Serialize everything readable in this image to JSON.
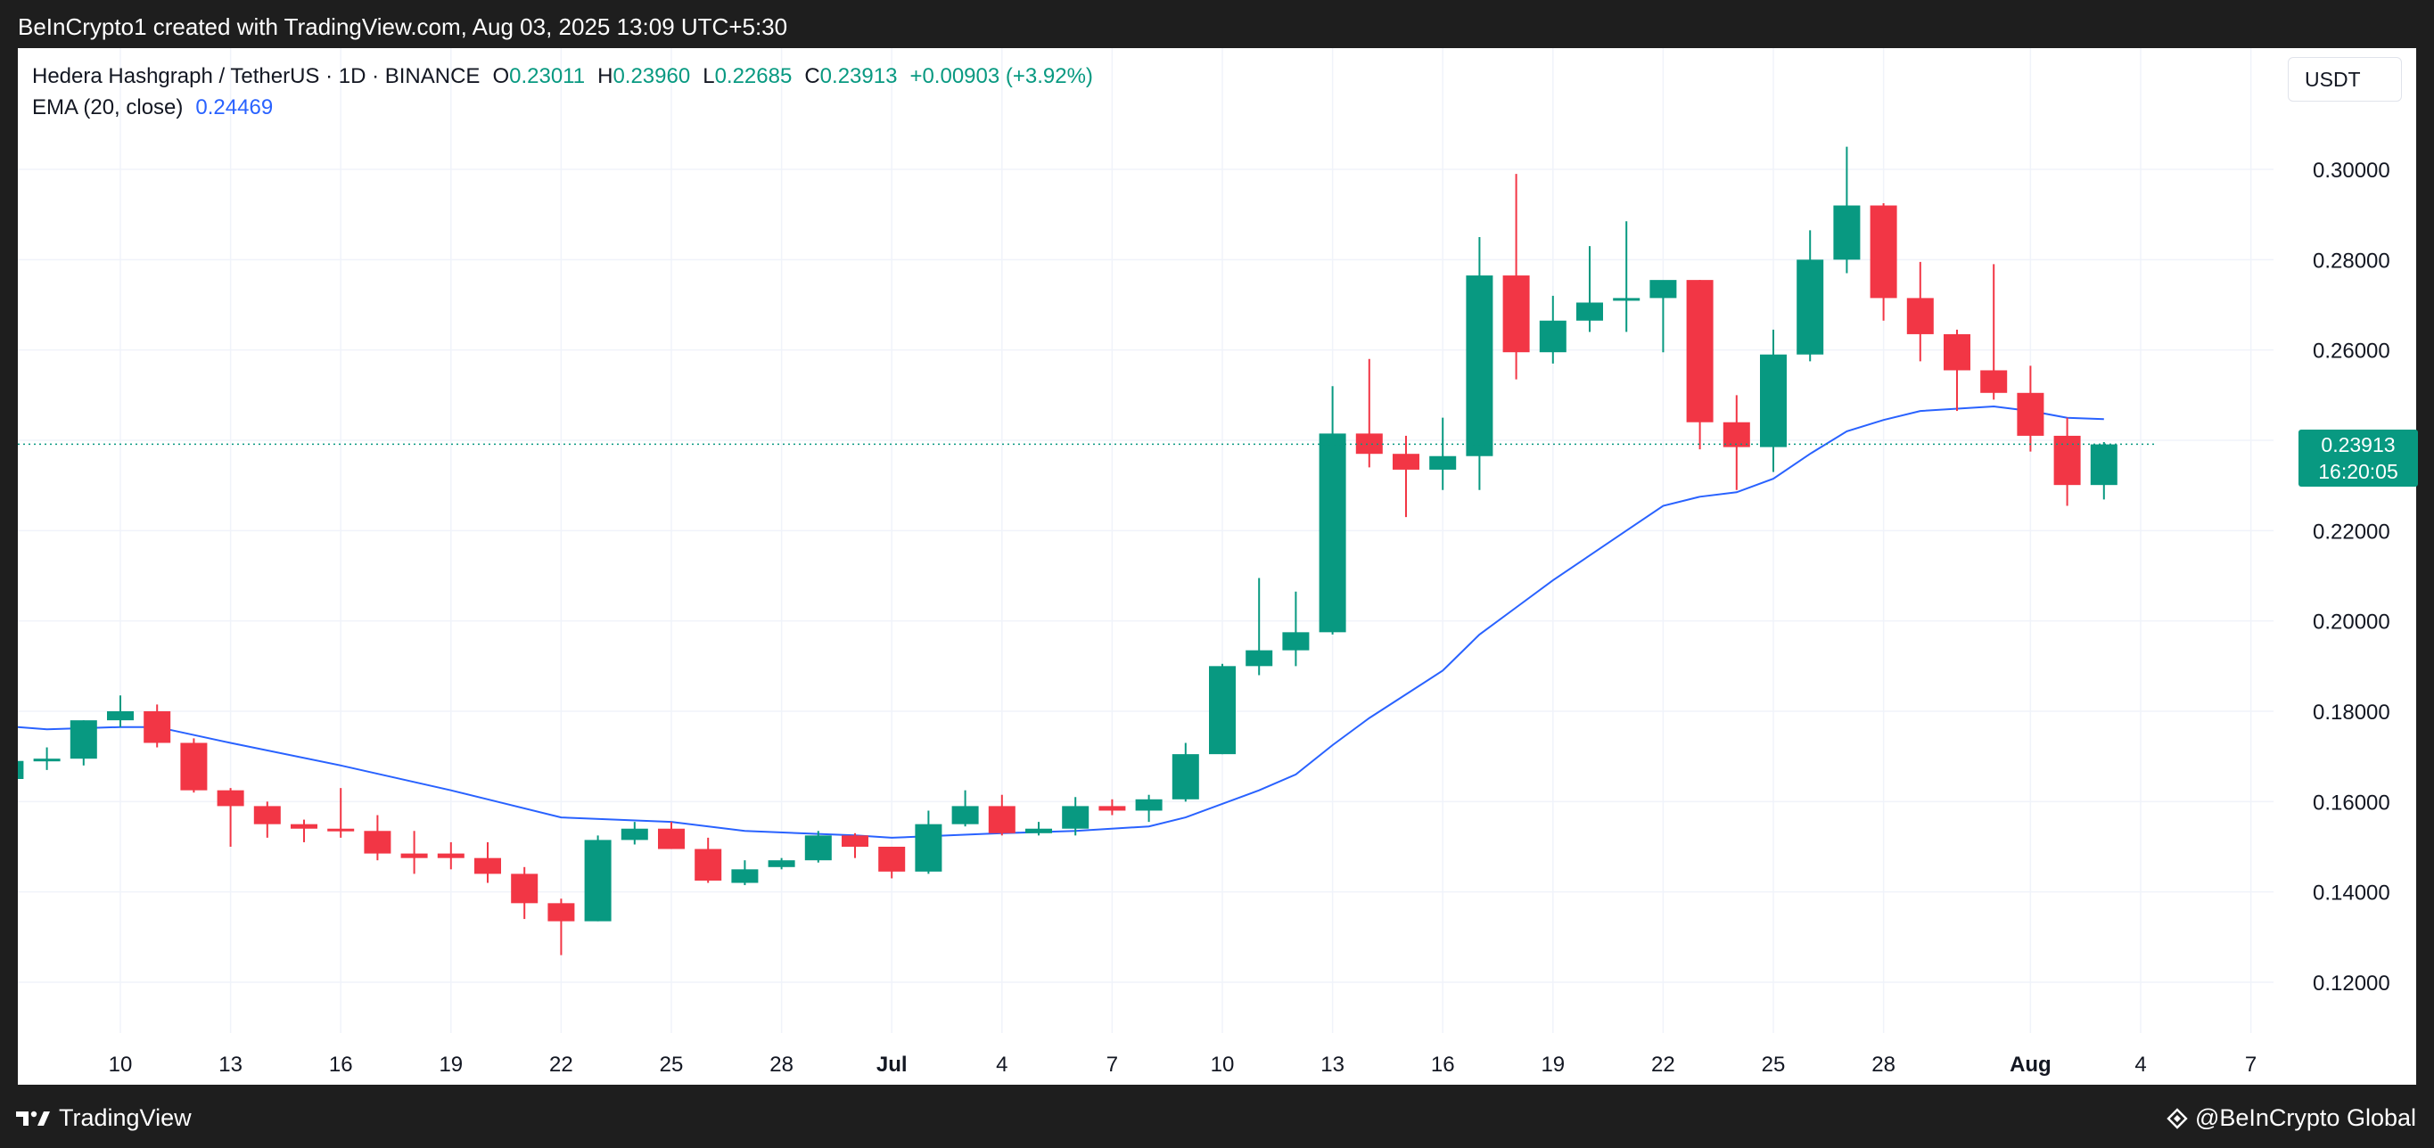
{
  "header": {
    "caption": "BeInCrypto1 created with TradingView.com, Aug 03, 2025 13:09 UTC+5:30"
  },
  "footer": {
    "tradingview_logo": "TradingView",
    "beincrypto_logo": "@BeInCrypto Global"
  },
  "legend": {
    "symbol": "Hedera Hashgraph / TetherUS · 1D · BINANCE",
    "o_label": "O",
    "o_value": "0.23011",
    "h_label": "H",
    "h_value": "0.23960",
    "l_label": "L",
    "l_value": "0.22685",
    "c_label": "C",
    "c_value": "0.23913",
    "change": "+0.00903 (+3.92%)",
    "ema_label": "EMA (20, close)",
    "ema_value": "0.24469"
  },
  "currency_button": "USDT",
  "last_price": {
    "price": "0.23913",
    "countdown": "16:20:05"
  },
  "colors": {
    "up": "#089981",
    "down": "#f23645",
    "ema": "#2962ff",
    "grid": "#f0f3fa"
  },
  "chart_data": {
    "type": "candlestick",
    "ylim": [
      0.11,
      0.3127
    ],
    "yticks": [
      {
        "value": 0.12,
        "label": "0.12000"
      },
      {
        "value": 0.14,
        "label": "0.14000"
      },
      {
        "value": 0.16,
        "label": "0.16000"
      },
      {
        "value": 0.18,
        "label": "0.18000"
      },
      {
        "value": 0.2,
        "label": "0.20000"
      },
      {
        "value": 0.22,
        "label": "0.22000"
      },
      {
        "value": 0.24,
        "label": "0.24000"
      },
      {
        "value": 0.26,
        "label": "0.26000"
      },
      {
        "value": 0.28,
        "label": "0.28000"
      },
      {
        "value": 0.3,
        "label": "0.30000"
      }
    ],
    "xticks": [
      {
        "date": "2025-06-10",
        "label": "10",
        "bold": false
      },
      {
        "date": "2025-06-13",
        "label": "13",
        "bold": false
      },
      {
        "date": "2025-06-16",
        "label": "16",
        "bold": false
      },
      {
        "date": "2025-06-19",
        "label": "19",
        "bold": false
      },
      {
        "date": "2025-06-22",
        "label": "22",
        "bold": false
      },
      {
        "date": "2025-06-25",
        "label": "25",
        "bold": false
      },
      {
        "date": "2025-06-28",
        "label": "28",
        "bold": false
      },
      {
        "date": "2025-07-01",
        "label": "Jul",
        "bold": true
      },
      {
        "date": "2025-07-04",
        "label": "4",
        "bold": false
      },
      {
        "date": "2025-07-07",
        "label": "7",
        "bold": false
      },
      {
        "date": "2025-07-10",
        "label": "10",
        "bold": false
      },
      {
        "date": "2025-07-13",
        "label": "13",
        "bold": false
      },
      {
        "date": "2025-07-16",
        "label": "16",
        "bold": false
      },
      {
        "date": "2025-07-19",
        "label": "19",
        "bold": false
      },
      {
        "date": "2025-07-22",
        "label": "22",
        "bold": false
      },
      {
        "date": "2025-07-25",
        "label": "25",
        "bold": false
      },
      {
        "date": "2025-07-28",
        "label": "28",
        "bold": false
      },
      {
        "date": "2025-08-01",
        "label": "Aug",
        "bold": true
      },
      {
        "date": "2025-08-04",
        "label": "4",
        "bold": false
      },
      {
        "date": "2025-08-07",
        "label": "7",
        "bold": false
      }
    ],
    "candles": [
      {
        "date": "2025-06-07",
        "o": 0.165,
        "h": 0.168,
        "l": 0.163,
        "c": 0.169
      },
      {
        "date": "2025-06-08",
        "o": 0.169,
        "h": 0.172,
        "l": 0.167,
        "c": 0.1695
      },
      {
        "date": "2025-06-09",
        "o": 0.1695,
        "h": 0.178,
        "l": 0.168,
        "c": 0.178
      },
      {
        "date": "2025-06-10",
        "o": 0.178,
        "h": 0.1835,
        "l": 0.1765,
        "c": 0.18
      },
      {
        "date": "2025-06-11",
        "o": 0.18,
        "h": 0.1815,
        "l": 0.172,
        "c": 0.173
      },
      {
        "date": "2025-06-12",
        "o": 0.173,
        "h": 0.174,
        "l": 0.162,
        "c": 0.1625
      },
      {
        "date": "2025-06-13",
        "o": 0.1625,
        "h": 0.163,
        "l": 0.15,
        "c": 0.159
      },
      {
        "date": "2025-06-14",
        "o": 0.159,
        "h": 0.16,
        "l": 0.152,
        "c": 0.155
      },
      {
        "date": "2025-06-15",
        "o": 0.155,
        "h": 0.156,
        "l": 0.151,
        "c": 0.154
      },
      {
        "date": "2025-06-16",
        "o": 0.154,
        "h": 0.163,
        "l": 0.152,
        "c": 0.1535
      },
      {
        "date": "2025-06-17",
        "o": 0.1535,
        "h": 0.157,
        "l": 0.147,
        "c": 0.1485
      },
      {
        "date": "2025-06-18",
        "o": 0.1485,
        "h": 0.1535,
        "l": 0.144,
        "c": 0.1475
      },
      {
        "date": "2025-06-19",
        "o": 0.1485,
        "h": 0.151,
        "l": 0.145,
        "c": 0.1475
      },
      {
        "date": "2025-06-20",
        "o": 0.1475,
        "h": 0.151,
        "l": 0.142,
        "c": 0.144
      },
      {
        "date": "2025-06-21",
        "o": 0.144,
        "h": 0.1455,
        "l": 0.134,
        "c": 0.1375
      },
      {
        "date": "2025-06-22",
        "o": 0.1375,
        "h": 0.1385,
        "l": 0.126,
        "c": 0.1335
      },
      {
        "date": "2025-06-23",
        "o": 0.1335,
        "h": 0.1525,
        "l": 0.1335,
        "c": 0.1515
      },
      {
        "date": "2025-06-24",
        "o": 0.1515,
        "h": 0.1555,
        "l": 0.1505,
        "c": 0.154
      },
      {
        "date": "2025-06-25",
        "o": 0.154,
        "h": 0.1555,
        "l": 0.1495,
        "c": 0.1495
      },
      {
        "date": "2025-06-26",
        "o": 0.1495,
        "h": 0.152,
        "l": 0.142,
        "c": 0.1425
      },
      {
        "date": "2025-06-27",
        "o": 0.142,
        "h": 0.147,
        "l": 0.1415,
        "c": 0.145
      },
      {
        "date": "2025-06-28",
        "o": 0.1455,
        "h": 0.1475,
        "l": 0.145,
        "c": 0.147
      },
      {
        "date": "2025-06-29",
        "o": 0.147,
        "h": 0.1535,
        "l": 0.1465,
        "c": 0.1525
      },
      {
        "date": "2025-06-30",
        "o": 0.1525,
        "h": 0.153,
        "l": 0.1475,
        "c": 0.15
      },
      {
        "date": "2025-07-01",
        "o": 0.15,
        "h": 0.15,
        "l": 0.143,
        "c": 0.1445
      },
      {
        "date": "2025-07-02",
        "o": 0.1445,
        "h": 0.158,
        "l": 0.144,
        "c": 0.155
      },
      {
        "date": "2025-07-03",
        "o": 0.155,
        "h": 0.1625,
        "l": 0.1545,
        "c": 0.159
      },
      {
        "date": "2025-07-04",
        "o": 0.159,
        "h": 0.1615,
        "l": 0.1525,
        "c": 0.153
      },
      {
        "date": "2025-07-05",
        "o": 0.153,
        "h": 0.1555,
        "l": 0.1525,
        "c": 0.154
      },
      {
        "date": "2025-07-06",
        "o": 0.154,
        "h": 0.161,
        "l": 0.1525,
        "c": 0.159
      },
      {
        "date": "2025-07-07",
        "o": 0.159,
        "h": 0.1605,
        "l": 0.157,
        "c": 0.158
      },
      {
        "date": "2025-07-08",
        "o": 0.158,
        "h": 0.1615,
        "l": 0.1555,
        "c": 0.1605
      },
      {
        "date": "2025-07-09",
        "o": 0.1605,
        "h": 0.173,
        "l": 0.16,
        "c": 0.1705
      },
      {
        "date": "2025-07-10",
        "o": 0.1705,
        "h": 0.1905,
        "l": 0.1705,
        "c": 0.19
      },
      {
        "date": "2025-07-11",
        "o": 0.19,
        "h": 0.2095,
        "l": 0.188,
        "c": 0.1935
      },
      {
        "date": "2025-07-12",
        "o": 0.1935,
        "h": 0.2065,
        "l": 0.19,
        "c": 0.1975
      },
      {
        "date": "2025-07-13",
        "o": 0.1975,
        "h": 0.252,
        "l": 0.197,
        "c": 0.2415
      },
      {
        "date": "2025-07-14",
        "o": 0.2415,
        "h": 0.258,
        "l": 0.234,
        "c": 0.237
      },
      {
        "date": "2025-07-15",
        "o": 0.237,
        "h": 0.241,
        "l": 0.223,
        "c": 0.2335
      },
      {
        "date": "2025-07-16",
        "o": 0.2335,
        "h": 0.245,
        "l": 0.229,
        "c": 0.2365
      },
      {
        "date": "2025-07-17",
        "o": 0.2365,
        "h": 0.285,
        "l": 0.229,
        "c": 0.2765
      },
      {
        "date": "2025-07-18",
        "o": 0.2765,
        "h": 0.299,
        "l": 0.2535,
        "c": 0.2595
      },
      {
        "date": "2025-07-19",
        "o": 0.2595,
        "h": 0.272,
        "l": 0.257,
        "c": 0.2665
      },
      {
        "date": "2025-07-20",
        "o": 0.2665,
        "h": 0.283,
        "l": 0.264,
        "c": 0.2705
      },
      {
        "date": "2025-07-21",
        "o": 0.271,
        "h": 0.2885,
        "l": 0.264,
        "c": 0.2715
      },
      {
        "date": "2025-07-22",
        "o": 0.2715,
        "h": 0.275,
        "l": 0.2595,
        "c": 0.2755
      },
      {
        "date": "2025-07-23",
        "o": 0.2755,
        "h": 0.2755,
        "l": 0.238,
        "c": 0.244
      },
      {
        "date": "2025-07-24",
        "o": 0.244,
        "h": 0.25,
        "l": 0.229,
        "c": 0.2385
      },
      {
        "date": "2025-07-25",
        "o": 0.2385,
        "h": 0.2645,
        "l": 0.233,
        "c": 0.259
      },
      {
        "date": "2025-07-26",
        "o": 0.259,
        "h": 0.2865,
        "l": 0.2575,
        "c": 0.28
      },
      {
        "date": "2025-07-27",
        "o": 0.28,
        "h": 0.305,
        "l": 0.277,
        "c": 0.292
      },
      {
        "date": "2025-07-28",
        "o": 0.292,
        "h": 0.2925,
        "l": 0.2665,
        "c": 0.2715
      },
      {
        "date": "2025-07-29",
        "o": 0.2715,
        "h": 0.2795,
        "l": 0.2575,
        "c": 0.2635
      },
      {
        "date": "2025-07-30",
        "o": 0.2635,
        "h": 0.2645,
        "l": 0.2465,
        "c": 0.2555
      },
      {
        "date": "2025-07-31",
        "o": 0.2555,
        "h": 0.279,
        "l": 0.249,
        "c": 0.2505
      },
      {
        "date": "2025-08-01",
        "o": 0.2505,
        "h": 0.2565,
        "l": 0.2375,
        "c": 0.241
      },
      {
        "date": "2025-08-02",
        "o": 0.241,
        "h": 0.245,
        "l": 0.2255,
        "c": 0.2301
      },
      {
        "date": "2025-08-03",
        "o": 0.2301,
        "h": 0.2396,
        "l": 0.2269,
        "c": 0.2391
      }
    ],
    "ema": [
      {
        "date": "2025-06-06",
        "v": 0.1765
      },
      {
        "date": "2025-06-08",
        "v": 0.176
      },
      {
        "date": "2025-06-10",
        "v": 0.1765
      },
      {
        "date": "2025-06-11",
        "v": 0.1765
      },
      {
        "date": "2025-06-13",
        "v": 0.173
      },
      {
        "date": "2025-06-16",
        "v": 0.168
      },
      {
        "date": "2025-06-19",
        "v": 0.1625
      },
      {
        "date": "2025-06-20",
        "v": 0.1605
      },
      {
        "date": "2025-06-22",
        "v": 0.1565
      },
      {
        "date": "2025-06-25",
        "v": 0.1555
      },
      {
        "date": "2025-06-27",
        "v": 0.1535
      },
      {
        "date": "2025-06-30",
        "v": 0.1525
      },
      {
        "date": "2025-07-01",
        "v": 0.152
      },
      {
        "date": "2025-07-04",
        "v": 0.153
      },
      {
        "date": "2025-07-06",
        "v": 0.1535
      },
      {
        "date": "2025-07-08",
        "v": 0.1545
      },
      {
        "date": "2025-07-09",
        "v": 0.1565
      },
      {
        "date": "2025-07-11",
        "v": 0.1625
      },
      {
        "date": "2025-07-12",
        "v": 0.166
      },
      {
        "date": "2025-07-13",
        "v": 0.1725
      },
      {
        "date": "2025-07-14",
        "v": 0.1785
      },
      {
        "date": "2025-07-16",
        "v": 0.189
      },
      {
        "date": "2025-07-17",
        "v": 0.197
      },
      {
        "date": "2025-07-18",
        "v": 0.203
      },
      {
        "date": "2025-07-19",
        "v": 0.209
      },
      {
        "date": "2025-07-21",
        "v": 0.22
      },
      {
        "date": "2025-07-22",
        "v": 0.2255
      },
      {
        "date": "2025-07-23",
        "v": 0.2275
      },
      {
        "date": "2025-07-24",
        "v": 0.2285
      },
      {
        "date": "2025-07-25",
        "v": 0.2315
      },
      {
        "date": "2025-07-26",
        "v": 0.237
      },
      {
        "date": "2025-07-27",
        "v": 0.242
      },
      {
        "date": "2025-07-28",
        "v": 0.2445
      },
      {
        "date": "2025-07-29",
        "v": 0.2465
      },
      {
        "date": "2025-07-31",
        "v": 0.2475
      },
      {
        "date": "2025-08-01",
        "v": 0.2465
      },
      {
        "date": "2025-08-02",
        "v": 0.245
      },
      {
        "date": "2025-08-03",
        "v": 0.2447
      }
    ]
  }
}
